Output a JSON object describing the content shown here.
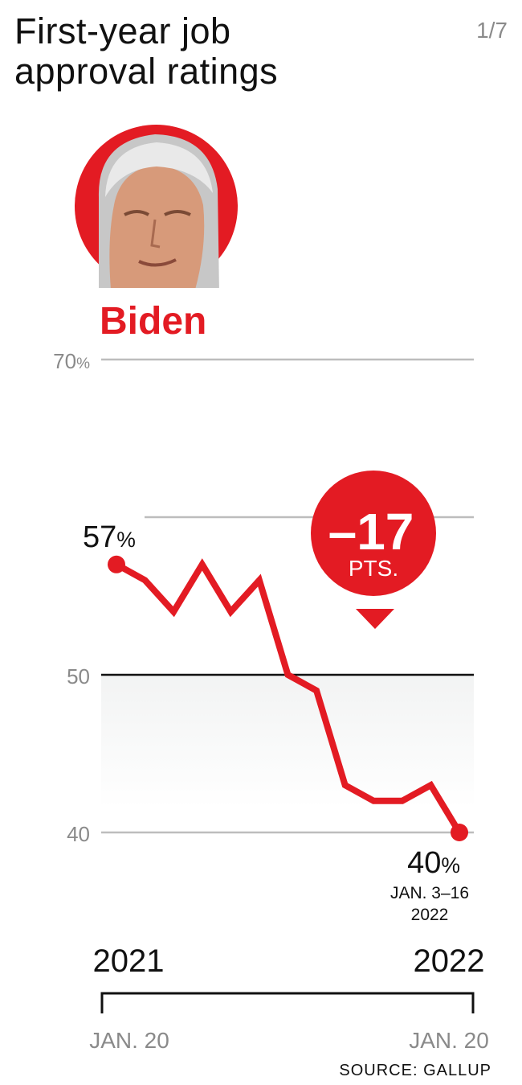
{
  "header": {
    "title": "First-year job\napproval ratings",
    "page_indicator": "1/7"
  },
  "president": {
    "name": "Biden",
    "portrait_icon": "biden-portrait-icon"
  },
  "colors": {
    "accent": "#e31b23",
    "grid": "#bdbdbd",
    "tick_label": "#8a8a8a",
    "shade": "#f2f3f3"
  },
  "chart_data": {
    "type": "line",
    "title": "",
    "xlabel": "",
    "ylabel": "",
    "ylim": [
      40,
      70
    ],
    "y_ticks": [
      {
        "value": 70,
        "label": "70%"
      },
      {
        "value": 60,
        "label": ""
      },
      {
        "value": 50,
        "label": "50"
      },
      {
        "value": 40,
        "label": "40"
      }
    ],
    "highlight_line": 50,
    "series": [
      {
        "values": [
          57,
          56,
          54,
          57,
          54,
          56,
          50,
          49,
          43,
          42,
          42,
          43,
          40
        ]
      }
    ],
    "start_label": "57%",
    "end_label": "40%",
    "end_date_label": "JAN. 3–16\n2022",
    "change_badge": {
      "value": "–17",
      "unit": "PTS."
    },
    "year_labels": {
      "start": "2021",
      "end": "2022"
    },
    "date_labels": {
      "start": "JAN. 20",
      "end": "JAN. 20"
    },
    "source": "SOURCE: GALLUP"
  }
}
